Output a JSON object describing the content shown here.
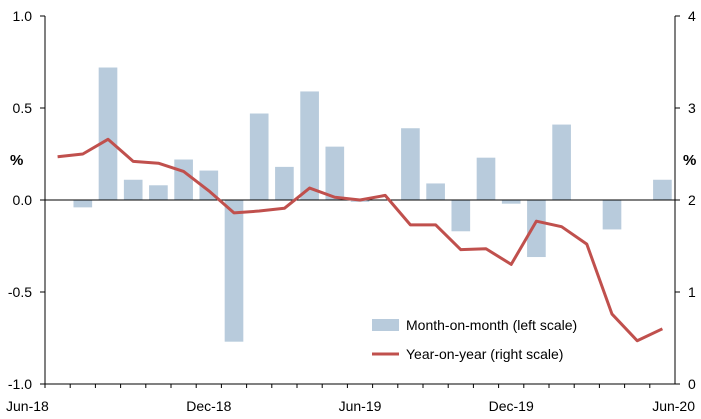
{
  "chart_data": {
    "type": "bar+line",
    "x_tick_labels": [
      "Jun-18",
      "Dec-18",
      "Jun-19",
      "Dec-19",
      "Jun-20"
    ],
    "x_tick_months": [
      "Jun-18",
      "Dec-18",
      "Jun-19",
      "Dec-19",
      "Jun-20"
    ],
    "months": [
      "Jun-18",
      "Jul-18",
      "Aug-18",
      "Sep-18",
      "Oct-18",
      "Nov-18",
      "Dec-18",
      "Jan-19",
      "Feb-19",
      "Mar-19",
      "Apr-19",
      "May-19",
      "Jun-19",
      "Jul-19",
      "Aug-19",
      "Sep-19",
      "Oct-19",
      "Nov-19",
      "Dec-19",
      "Jan-20",
      "Feb-20",
      "Mar-20",
      "Apr-20",
      "May-20",
      "Jun-20"
    ],
    "left_axis": {
      "unit": "%",
      "ylim": [
        -1.0,
        1.0
      ],
      "ticks": [
        -1.0,
        -0.5,
        0.0,
        0.5,
        1.0
      ],
      "tick_labels": [
        "-1.0",
        "-0.5",
        "0.0",
        "0.5",
        "1.0"
      ]
    },
    "right_axis": {
      "unit": "%",
      "ylim": [
        0,
        4
      ],
      "ticks": [
        0,
        1,
        2,
        3,
        4
      ],
      "tick_labels": [
        "0",
        "1",
        "2",
        "3",
        "4"
      ]
    },
    "series": [
      {
        "name": "Month-on-month (left scale)",
        "type": "bar",
        "axis": "left",
        "color": "#b8cbdc",
        "values": [
          0.0,
          -0.04,
          0.72,
          0.11,
          0.08,
          0.22,
          0.16,
          -0.77,
          0.47,
          0.18,
          0.59,
          0.29,
          -0.01,
          0.0,
          0.39,
          0.09,
          -0.17,
          0.23,
          -0.02,
          -0.31,
          0.41,
          0.0,
          -0.16,
          0.0,
          0.11
        ]
      },
      {
        "name": "Year-on-year (right scale)",
        "type": "line",
        "axis": "right",
        "color": "#c0504d",
        "values": [
          2.47,
          2.5,
          2.66,
          2.42,
          2.4,
          2.31,
          2.1,
          1.86,
          1.88,
          1.91,
          2.13,
          2.03,
          2.0,
          2.05,
          1.73,
          1.73,
          1.46,
          1.47,
          1.3,
          1.77,
          1.71,
          1.52,
          0.76,
          0.47,
          0.6
        ]
      }
    ],
    "legend_position": "bottom-right",
    "grid": false
  }
}
